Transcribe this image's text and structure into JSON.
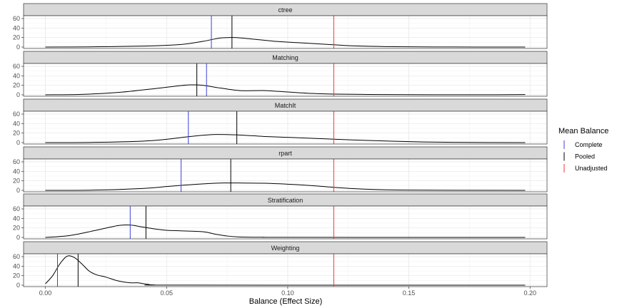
{
  "chart_data": {
    "type": "line",
    "xlabel": "Balance (Effect Size)",
    "ylabel": "",
    "xlim": [
      -0.009,
      0.207
    ],
    "ylim": [
      -3,
      66
    ],
    "x_ticks": [
      "0.00",
      "0.05",
      "0.10",
      "0.15",
      "0.20"
    ],
    "x_tick_values": [
      0.0,
      0.05,
      0.1,
      0.15,
      0.2
    ],
    "y_ticks": [
      "0",
      "20",
      "40",
      "60"
    ],
    "y_tick_values": [
      0,
      20,
      40,
      60
    ],
    "grid": true,
    "legend": {
      "title": "Mean Balance",
      "position": "right",
      "items": [
        {
          "label": "Complete",
          "color": "#3f3fd9"
        },
        {
          "label": "Pooled",
          "color": "#000000"
        },
        {
          "label": "Unadjusted",
          "color": "#e8383d"
        }
      ]
    },
    "panels": [
      {
        "name": "ctree",
        "means": {
          "Complete": 0.0685,
          "Pooled": 0.077,
          "Unadjusted": 0.119
        },
        "density_x": [
          0.0,
          0.02,
          0.04,
          0.055,
          0.065,
          0.072,
          0.078,
          0.085,
          0.095,
          0.105,
          0.115,
          0.125,
          0.14,
          0.16,
          0.198
        ],
        "density_y": [
          0,
          0.5,
          2,
          5,
          12,
          19,
          20,
          17,
          12,
          9,
          6,
          3,
          1,
          0.2,
          0
        ]
      },
      {
        "name": "Matching",
        "means": {
          "Complete": 0.0665,
          "Pooled": 0.0625,
          "Unadjusted": 0.119
        },
        "density_x": [
          0.0,
          0.015,
          0.03,
          0.045,
          0.055,
          0.06,
          0.065,
          0.07,
          0.08,
          0.09,
          0.1,
          0.11,
          0.12,
          0.14,
          0.16,
          0.18,
          0.198
        ],
        "density_y": [
          0,
          1,
          5,
          13,
          19,
          21,
          20,
          16,
          9,
          9,
          6,
          3,
          1.5,
          0.5,
          0.2,
          0.1,
          0.5
        ]
      },
      {
        "name": "MatchIt",
        "means": {
          "Complete": 0.059,
          "Pooled": 0.079,
          "Unadjusted": 0.119
        },
        "density_x": [
          0.0,
          0.02,
          0.04,
          0.05,
          0.06,
          0.07,
          0.08,
          0.09,
          0.1,
          0.11,
          0.12,
          0.13,
          0.15,
          0.17,
          0.198
        ],
        "density_y": [
          0,
          0.5,
          3,
          7,
          13,
          17,
          16,
          13,
          11,
          9,
          7,
          5,
          2,
          0.5,
          0
        ]
      },
      {
        "name": "rpart",
        "means": {
          "Complete": 0.056,
          "Pooled": 0.0765,
          "Unadjusted": 0.119
        },
        "density_x": [
          0.0,
          0.02,
          0.04,
          0.05,
          0.06,
          0.07,
          0.075,
          0.08,
          0.09,
          0.1,
          0.11,
          0.12,
          0.13,
          0.15,
          0.198
        ],
        "density_y": [
          0,
          0.5,
          4,
          8,
          12,
          15,
          15.5,
          15.5,
          15,
          13,
          10,
          6,
          3,
          0.5,
          0
        ]
      },
      {
        "name": "Stratification",
        "means": {
          "Complete": 0.035,
          "Pooled": 0.0415,
          "Unadjusted": 0.119
        },
        "density_x": [
          0.0,
          0.01,
          0.02,
          0.03,
          0.035,
          0.04,
          0.045,
          0.05,
          0.055,
          0.065,
          0.07,
          0.075,
          0.08,
          0.09,
          0.1,
          0.198
        ],
        "density_y": [
          0,
          4,
          14,
          25,
          26,
          22,
          18,
          15,
          14,
          12,
          7,
          3,
          1,
          0.3,
          0.1,
          0
        ]
      },
      {
        "name": "Weighting",
        "means": {
          "Complete": 0.005,
          "Pooled": 0.0135,
          "Unadjusted": 0.119
        },
        "density_x": [
          0.0,
          0.003,
          0.006,
          0.009,
          0.012,
          0.015,
          0.018,
          0.021,
          0.025,
          0.03,
          0.035,
          0.038,
          0.042,
          0.045,
          0.055,
          0.198
        ],
        "density_y": [
          3,
          20,
          45,
          61,
          58,
          45,
          30,
          22,
          17,
          9,
          5,
          5,
          2,
          0.5,
          0.1,
          0
        ]
      }
    ]
  }
}
